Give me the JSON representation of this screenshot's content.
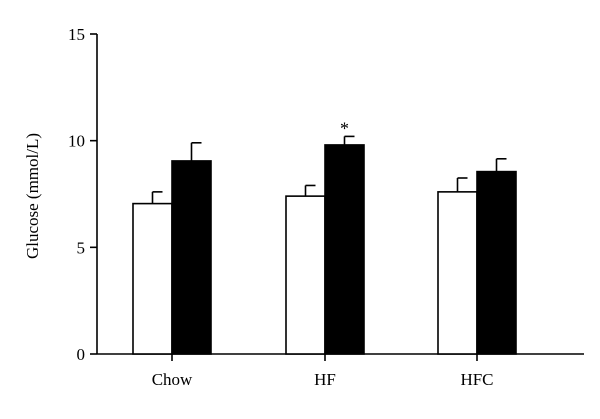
{
  "chart_data": {
    "type": "bar",
    "title": "",
    "xlabel": "",
    "ylabel": "Glucose (mmol/L)",
    "ylim": [
      0,
      15
    ],
    "yticks": [
      0,
      5,
      10,
      15
    ],
    "categories": [
      "Chow",
      "HF",
      "HFC"
    ],
    "series": [
      {
        "fill": "#ffffff",
        "values": [
          7.05,
          7.4,
          7.6
        ],
        "errors": [
          0.55,
          0.5,
          0.65
        ]
      },
      {
        "fill": "#000000",
        "values": [
          9.05,
          9.8,
          8.55
        ],
        "errors": [
          0.85,
          0.4,
          0.6
        ]
      }
    ],
    "annotations": [
      {
        "text": "*",
        "category": "HF",
        "series_index": 1
      }
    ],
    "grid": false,
    "legend": "none"
  }
}
